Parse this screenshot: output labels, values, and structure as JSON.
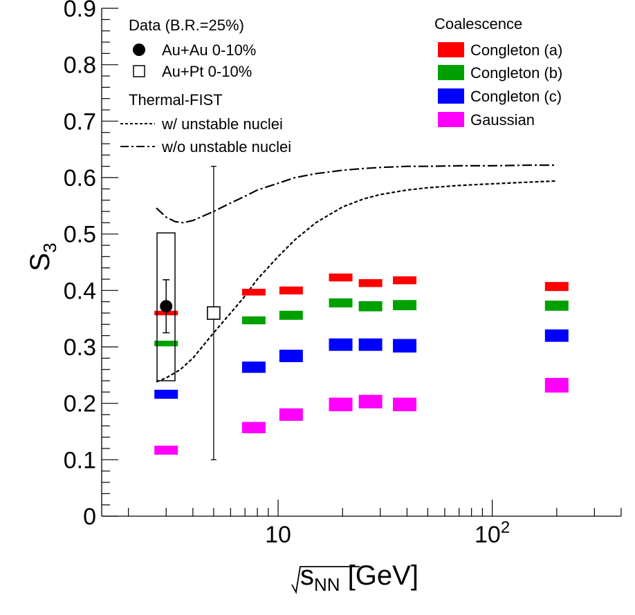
{
  "chart_data": {
    "type": "scatter",
    "xlabel": {
      "prefix": "s",
      "sub": "NN",
      "suffix": " [GeV]"
    },
    "ylabel": {
      "main": "S",
      "sub": "3"
    },
    "x_scale": "log",
    "xlim": [
      1.5,
      400
    ],
    "ylim": [
      0,
      0.9
    ],
    "x_ticks": [
      {
        "value": 10,
        "base": "10",
        "exp": ""
      },
      {
        "value": 100,
        "base": "10",
        "exp": "2"
      }
    ],
    "y_ticks": [
      "0",
      "0.1",
      "0.2",
      "0.3",
      "0.4",
      "0.5",
      "0.6",
      "0.7",
      "0.8",
      "0.9"
    ],
    "colors": {
      "congleton_a": "#ff0000",
      "congleton_b": "#00a000",
      "congleton_c": "#0000ff",
      "gaussian": "#ff00ff",
      "line": "#000000"
    },
    "legend_left": {
      "data_header": "Data (B.R.=25%)",
      "auau": "Au+Au 0-10%",
      "aupt": "Au+Pt 0-10%",
      "model_header": "Thermal-FIST",
      "with_unstable": "w/ unstable nuclei",
      "without_unstable": "w/o unstable nuclei"
    },
    "legend_right": {
      "header": "Coalescence",
      "items": [
        "Congleton (a)",
        "Congleton (b)",
        "Congleton (c)",
        "Gaussian"
      ]
    },
    "data_points": {
      "auau": {
        "x": 3.0,
        "y": 0.372,
        "stat_err": 0.047,
        "sys_box": [
          0.24,
          0.502
        ],
        "sys_x_range": [
          2.72,
          3.3
        ]
      },
      "aupt": {
        "x": 5.0,
        "y": 0.36,
        "err_low": 0.26,
        "err_high": 0.26
      }
    },
    "coalescence": {
      "x": [
        3.0,
        7.7,
        11.5,
        19.6,
        27,
        39,
        200
      ],
      "series": [
        {
          "name": "Congleton (a)",
          "color_key": "congleton_a",
          "values": [
            0.36,
            0.397,
            0.4,
            0.423,
            0.413,
            0.418,
            0.407
          ],
          "half_height": [
            0.004,
            0.006,
            0.007,
            0.007,
            0.007,
            0.007,
            0.008
          ]
        },
        {
          "name": "Congleton (b)",
          "color_key": "congleton_b",
          "values": [
            0.306,
            0.347,
            0.356,
            0.378,
            0.372,
            0.374,
            0.373
          ],
          "half_height": [
            0.005,
            0.007,
            0.008,
            0.008,
            0.009,
            0.009,
            0.009
          ]
        },
        {
          "name": "Congleton (c)",
          "color_key": "congleton_c",
          "values": [
            0.216,
            0.264,
            0.284,
            0.304,
            0.304,
            0.302,
            0.32
          ],
          "half_height": [
            0.008,
            0.01,
            0.011,
            0.011,
            0.011,
            0.012,
            0.011
          ]
        },
        {
          "name": "Gaussian",
          "color_key": "gaussian",
          "values": [
            0.117,
            0.157,
            0.18,
            0.198,
            0.203,
            0.198,
            0.232
          ],
          "half_height": [
            0.008,
            0.01,
            0.011,
            0.012,
            0.012,
            0.012,
            0.013
          ]
        }
      ]
    },
    "thermal_fist": {
      "with_unstable": {
        "x": [
          2.7,
          3.0,
          3.5,
          4.0,
          5.0,
          6.0,
          7.0,
          8.0,
          10,
          12,
          15,
          20,
          25,
          30,
          40,
          50,
          70,
          100,
          150,
          200
        ],
        "y": [
          0.238,
          0.245,
          0.26,
          0.28,
          0.325,
          0.36,
          0.39,
          0.42,
          0.46,
          0.49,
          0.52,
          0.548,
          0.562,
          0.57,
          0.578,
          0.582,
          0.586,
          0.589,
          0.592,
          0.594
        ]
      },
      "without_unstable": {
        "x": [
          2.7,
          3.0,
          3.3,
          3.6,
          4.0,
          5.0,
          6.0,
          7.0,
          8.0,
          10,
          12,
          15,
          20,
          25,
          30,
          40,
          50,
          70,
          100,
          150,
          200
        ],
        "y": [
          0.546,
          0.53,
          0.522,
          0.52,
          0.524,
          0.54,
          0.555,
          0.567,
          0.578,
          0.59,
          0.6,
          0.607,
          0.613,
          0.616,
          0.618,
          0.62,
          0.62,
          0.621,
          0.621,
          0.622,
          0.622
        ]
      }
    }
  }
}
